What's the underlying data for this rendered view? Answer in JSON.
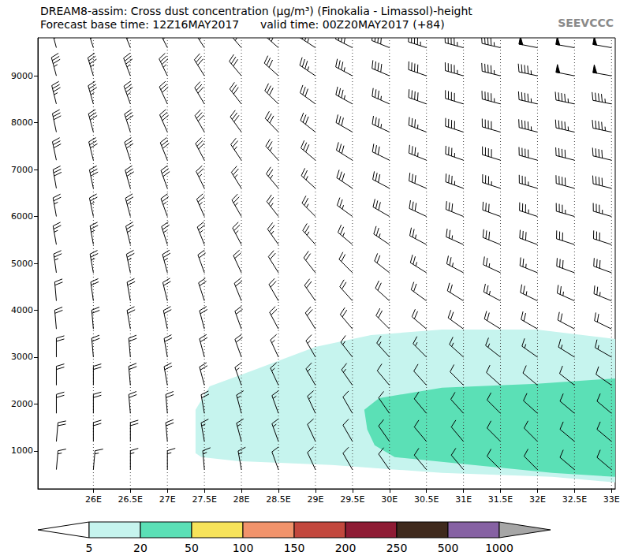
{
  "chart_data": {
    "type": "cross_section",
    "title": "DREAM8-assim: Cross dust concentration (μg/m³) (Finokalia - Limassol)-height",
    "subtitle": "Forecast base time: 12Z16MAY2017      valid time: 00Z20MAY2017 (+84)",
    "annotations": [
      {
        "text": "SEEVCCC"
      }
    ],
    "xlim": [
      25.25,
      33.05
    ],
    "xticks": [
      {
        "value": 26,
        "label": "26E"
      },
      {
        "value": 26.5,
        "label": "26.5E"
      },
      {
        "value": 27,
        "label": "27E"
      },
      {
        "value": 27.5,
        "label": "27.5E"
      },
      {
        "value": 28,
        "label": "28E"
      },
      {
        "value": 28.5,
        "label": "28.5E"
      },
      {
        "value": 29,
        "label": "29E"
      },
      {
        "value": 29.5,
        "label": "29.5E"
      },
      {
        "value": 30,
        "label": "30E"
      },
      {
        "value": 30.5,
        "label": "30.5E"
      },
      {
        "value": 31,
        "label": "31E"
      },
      {
        "value": 31.5,
        "label": "31.5E"
      },
      {
        "value": 32,
        "label": "32E"
      },
      {
        "value": 32.5,
        "label": "32.5E"
      },
      {
        "value": 33,
        "label": "33E"
      }
    ],
    "ylim": [
      190,
      9810
    ],
    "yticks": [
      1000,
      2000,
      3000,
      4000,
      5000,
      6000,
      7000,
      8000,
      9000
    ],
    "grid": "x",
    "areas": [
      {
        "range": [
          5,
          20
        ],
        "x": [
          27.38,
          27.38,
          27.57,
          28.15,
          29.0,
          29.75,
          30.71,
          31.99,
          33.05,
          33.05,
          32.2,
          30.71,
          29.22,
          27.94,
          27.46
        ],
        "y": [
          950,
          1874,
          2378,
          2714,
          3218,
          3470,
          3588,
          3588,
          3387,
          328,
          445,
          529,
          697,
          782,
          866
        ]
      },
      {
        "range": [
          20,
          50
        ],
        "x": [
          29.7,
          29.66,
          29.86,
          30.71,
          31.99,
          33.05,
          33.05,
          32.2,
          31.13,
          30.07,
          29.8
        ],
        "y": [
          1454,
          1874,
          2126,
          2345,
          2429,
          2546,
          445,
          529,
          697,
          866,
          1118
        ]
      }
    ],
    "wind": {
      "x": [
        25.5,
        26,
        26.5,
        27,
        27.5,
        28,
        28.5,
        29,
        29.5,
        30,
        30.5,
        31,
        31.5,
        32,
        32.5,
        33
      ],
      "heights": [
        600,
        1200,
        1800,
        2400,
        3000,
        3600,
        4200,
        4800,
        5400,
        6000,
        6600,
        7200,
        7800,
        8400,
        9000,
        9600
      ],
      "speed": [
        [
          15,
          15,
          15,
          15,
          15,
          15,
          10,
          10,
          10,
          10,
          10,
          10,
          10,
          10,
          10,
          10
        ],
        [
          20,
          20,
          20,
          20,
          15,
          15,
          15,
          10,
          10,
          10,
          10,
          10,
          10,
          10,
          10,
          10
        ],
        [
          20,
          20,
          20,
          20,
          20,
          15,
          15,
          15,
          10,
          10,
          10,
          10,
          10,
          10,
          10,
          10
        ],
        [
          20,
          20,
          20,
          20,
          20,
          15,
          15,
          15,
          15,
          10,
          10,
          10,
          10,
          10,
          10,
          10
        ],
        [
          20,
          20,
          20,
          20,
          20,
          20,
          15,
          15,
          15,
          15,
          15,
          15,
          15,
          15,
          15,
          15
        ],
        [
          20,
          20,
          20,
          20,
          20,
          20,
          20,
          20,
          20,
          20,
          20,
          20,
          20,
          20,
          20,
          20
        ],
        [
          20,
          20,
          20,
          20,
          20,
          20,
          20,
          20,
          20,
          20,
          20,
          20,
          25,
          25,
          25,
          25
        ],
        [
          25,
          25,
          25,
          25,
          20,
          20,
          20,
          20,
          20,
          20,
          25,
          25,
          25,
          25,
          30,
          30
        ],
        [
          25,
          25,
          25,
          25,
          25,
          25,
          25,
          25,
          25,
          25,
          25,
          25,
          30,
          30,
          30,
          30
        ],
        [
          25,
          25,
          25,
          25,
          25,
          25,
          25,
          25,
          25,
          30,
          30,
          30,
          30,
          35,
          35,
          35
        ],
        [
          30,
          30,
          30,
          30,
          25,
          25,
          25,
          25,
          30,
          30,
          30,
          35,
          35,
          35,
          40,
          40
        ],
        [
          30,
          30,
          30,
          30,
          30,
          25,
          25,
          30,
          30,
          30,
          35,
          35,
          40,
          40,
          40,
          40
        ],
        [
          30,
          30,
          30,
          30,
          30,
          30,
          30,
          30,
          30,
          35,
          35,
          40,
          40,
          45,
          45,
          45
        ],
        [
          35,
          35,
          35,
          30,
          30,
          30,
          30,
          30,
          35,
          35,
          40,
          40,
          45,
          45,
          45,
          45
        ],
        [
          35,
          35,
          35,
          35,
          30,
          30,
          30,
          35,
          35,
          40,
          40,
          45,
          45,
          45,
          50,
          50
        ],
        [
          35,
          35,
          35,
          35,
          35,
          35,
          35,
          35,
          40,
          40,
          45,
          45,
          45,
          50,
          50,
          50
        ]
      ],
      "direction": [
        [
          5,
          5,
          0,
          0,
          355,
          350,
          340,
          335,
          330,
          325,
          320,
          320,
          315,
          315,
          310,
          310
        ],
        [
          5,
          0,
          0,
          355,
          350,
          345,
          340,
          335,
          330,
          325,
          320,
          320,
          315,
          315,
          310,
          310
        ],
        [
          0,
          0,
          355,
          355,
          350,
          345,
          340,
          335,
          330,
          325,
          320,
          318,
          315,
          312,
          310,
          310
        ],
        [
          0,
          0,
          355,
          350,
          345,
          340,
          335,
          330,
          325,
          320,
          318,
          315,
          312,
          310,
          308,
          305
        ],
        [
          0,
          355,
          355,
          350,
          345,
          340,
          335,
          330,
          322,
          318,
          315,
          312,
          308,
          305,
          302,
          300
        ],
        [
          355,
          355,
          350,
          348,
          345,
          340,
          332,
          328,
          320,
          315,
          310,
          306,
          302,
          300,
          298,
          296
        ],
        [
          355,
          352,
          350,
          346,
          342,
          338,
          330,
          325,
          318,
          312,
          306,
          302,
          298,
          296,
          294,
          292
        ],
        [
          352,
          350,
          348,
          345,
          340,
          335,
          328,
          322,
          315,
          308,
          302,
          298,
          295,
          292,
          290,
          290
        ],
        [
          350,
          350,
          346,
          342,
          338,
          332,
          325,
          318,
          310,
          304,
          298,
          294,
          292,
          290,
          288,
          288
        ],
        [
          350,
          348,
          345,
          340,
          336,
          330,
          322,
          315,
          306,
          300,
          295,
          292,
          290,
          288,
          286,
          286
        ],
        [
          350,
          348,
          344,
          340,
          334,
          328,
          320,
          312,
          304,
          298,
          293,
          290,
          288,
          286,
          285,
          284
        ],
        [
          348,
          346,
          342,
          338,
          332,
          326,
          318,
          310,
          302,
          296,
          292,
          289,
          287,
          285,
          284,
          283
        ],
        [
          348,
          345,
          342,
          336,
          330,
          324,
          316,
          308,
          300,
          295,
          291,
          288,
          286,
          284,
          283,
          282
        ],
        [
          346,
          344,
          340,
          335,
          329,
          322,
          314,
          306,
          299,
          294,
          290,
          287,
          285,
          283,
          282,
          281
        ],
        [
          345,
          343,
          339,
          334,
          328,
          320,
          312,
          304,
          298,
          293,
          289,
          286,
          284,
          282,
          281,
          280
        ],
        [
          345,
          342,
          338,
          333,
          327,
          319,
          311,
          303,
          297,
          292,
          288,
          285,
          283,
          281,
          280,
          280
        ]
      ]
    },
    "colorbar": {
      "levels": [
        5,
        20,
        50,
        100,
        150,
        200,
        250,
        500,
        1000
      ],
      "colors": [
        "#c6f4ee",
        "#5be0b6",
        "#f7e35a",
        "#f1936b",
        "#c2473d",
        "#8e1b34",
        "#3f2a1d",
        "#8661a3"
      ],
      "under_color": "#ffffff",
      "over_color": "#a6a6a6"
    }
  }
}
